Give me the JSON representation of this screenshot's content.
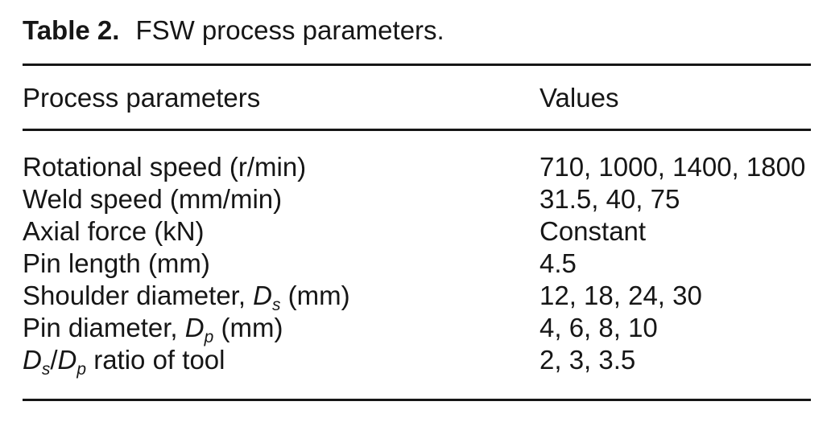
{
  "page": {
    "background": "#ffffff",
    "text_color": "#161616",
    "rule_color": "#161616"
  },
  "table": {
    "label": "Table 2.",
    "caption": "FSW process parameters.",
    "columns": {
      "param": "Process parameters",
      "value": "Values"
    },
    "rows": [
      {
        "param": [
          {
            "t": "Rotational speed (r/min)",
            "s": "n"
          }
        ],
        "value": "710, 1000, 1400, 1800"
      },
      {
        "param": [
          {
            "t": "Weld speed (mm/min)",
            "s": "n"
          }
        ],
        "value": "31.5, 40, 75"
      },
      {
        "param": [
          {
            "t": "Axial force (kN)",
            "s": "n"
          }
        ],
        "value": "Constant"
      },
      {
        "param": [
          {
            "t": "Pin length (mm)",
            "s": "n"
          }
        ],
        "value": "4.5"
      },
      {
        "param": [
          {
            "t": "Shoulder diameter, ",
            "s": "n"
          },
          {
            "t": "D",
            "s": "i"
          },
          {
            "t": "s",
            "s": "isub"
          },
          {
            "t": " (mm)",
            "s": "n"
          }
        ],
        "value": "12, 18, 24, 30"
      },
      {
        "param": [
          {
            "t": "Pin diameter, ",
            "s": "n"
          },
          {
            "t": "D",
            "s": "i"
          },
          {
            "t": "p",
            "s": "isub"
          },
          {
            "t": " (mm)",
            "s": "n"
          }
        ],
        "value": "4, 6, 8, 10"
      },
      {
        "param": [
          {
            "t": "D",
            "s": "i"
          },
          {
            "t": "s",
            "s": "isub"
          },
          {
            "t": "/",
            "s": "n"
          },
          {
            "t": "D",
            "s": "i"
          },
          {
            "t": "p",
            "s": "isub"
          },
          {
            "t": " ratio of tool",
            "s": "n"
          }
        ],
        "value": "2, 3, 3.5"
      }
    ]
  }
}
